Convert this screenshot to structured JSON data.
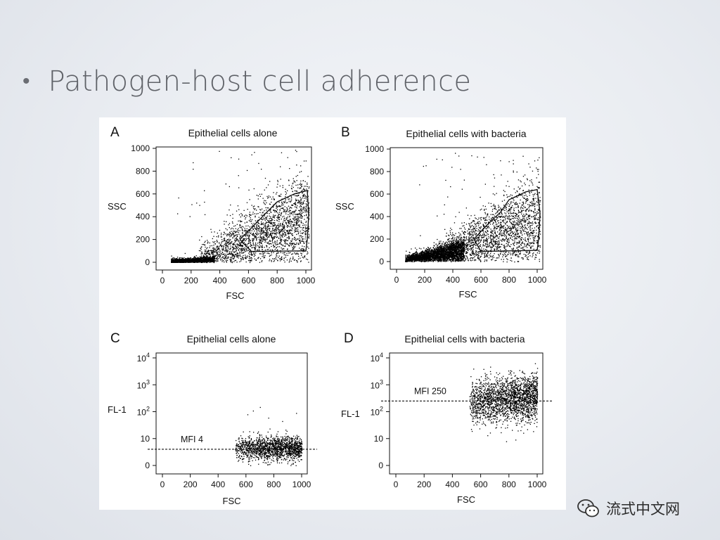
{
  "slide": {
    "bullet": "•",
    "title": "Pathogen-host cell adherence"
  },
  "watermark": {
    "icon": "wechat-icon",
    "text": "流式中文网"
  },
  "chart_data": [
    {
      "panel": "A",
      "type": "scatter",
      "title": "Epithelial cells alone",
      "xlabel": "FSC",
      "ylabel": "SSC",
      "xlim": [
        0,
        1024
      ],
      "ylim": [
        0,
        1024
      ],
      "xticks": [
        "0",
        "200",
        "400",
        "600",
        "800",
        "1000"
      ],
      "yticks": [
        "0",
        "200",
        "400",
        "600",
        "800",
        "1000"
      ],
      "gate_polygon": [
        [
          540,
          200
        ],
        [
          620,
          300
        ],
        [
          720,
          430
        ],
        [
          800,
          530
        ],
        [
          920,
          600
        ],
        [
          1010,
          630
        ],
        [
          1020,
          420
        ],
        [
          1010,
          200
        ],
        [
          1000,
          100
        ],
        [
          620,
          95
        ],
        [
          540,
          200
        ]
      ],
      "population": "dense cluster at FSC 50-350, SSC 0-80; diagonal band rising to FSC 1000, SSC 200-1000"
    },
    {
      "panel": "B",
      "type": "scatter",
      "title": "Epithelial cells with bacteria",
      "xlabel": "FSC",
      "ylabel": "SSC",
      "xlim": [
        0,
        1024
      ],
      "ylim": [
        0,
        1024
      ],
      "xticks": [
        "0",
        "200",
        "400",
        "600",
        "800",
        "1000"
      ],
      "yticks": [
        "0",
        "200",
        "400",
        "600",
        "800",
        "1000"
      ],
      "gate_polygon": [
        [
          550,
          200
        ],
        [
          640,
          320
        ],
        [
          740,
          440
        ],
        [
          800,
          550
        ],
        [
          920,
          620
        ],
        [
          1000,
          640
        ],
        [
          1020,
          430
        ],
        [
          1010,
          200
        ],
        [
          1000,
          100
        ],
        [
          600,
          90
        ],
        [
          550,
          200
        ]
      ],
      "population": "dense cluster at FSC 50-450, SSC 0-250; diagonal band rising to FSC 1000, SSC 200-1000"
    },
    {
      "panel": "C",
      "type": "scatter",
      "title": "Epithelial cells alone",
      "xlabel": "FSC",
      "ylabel": "FL-1",
      "xlim": [
        0,
        1024
      ],
      "ylim_log10": [
        0,
        4
      ],
      "xticks": [
        "0",
        "200",
        "400",
        "600",
        "800",
        "1000"
      ],
      "yticks": [
        "0",
        "10",
        "10²",
        "10³",
        "10⁴"
      ],
      "mfi_label": "MFI 4",
      "mfi_value": 4,
      "population": "FSC 520-1000, FL-1 mostly 2-12"
    },
    {
      "panel": "D",
      "type": "scatter",
      "title": "Epithelial cells with bacteria",
      "xlabel": "FSC",
      "ylabel": "FL-1",
      "xlim": [
        0,
        1024
      ],
      "ylim_log10": [
        0,
        4
      ],
      "xticks": [
        "0",
        "200",
        "400",
        "600",
        "800",
        "1000"
      ],
      "yticks": [
        "0",
        "10",
        "10²",
        "10³",
        "10⁴"
      ],
      "mfi_label": "MFI 250",
      "mfi_value": 250,
      "population": "FSC 520-1000, FL-1 mostly 30-2000"
    }
  ]
}
